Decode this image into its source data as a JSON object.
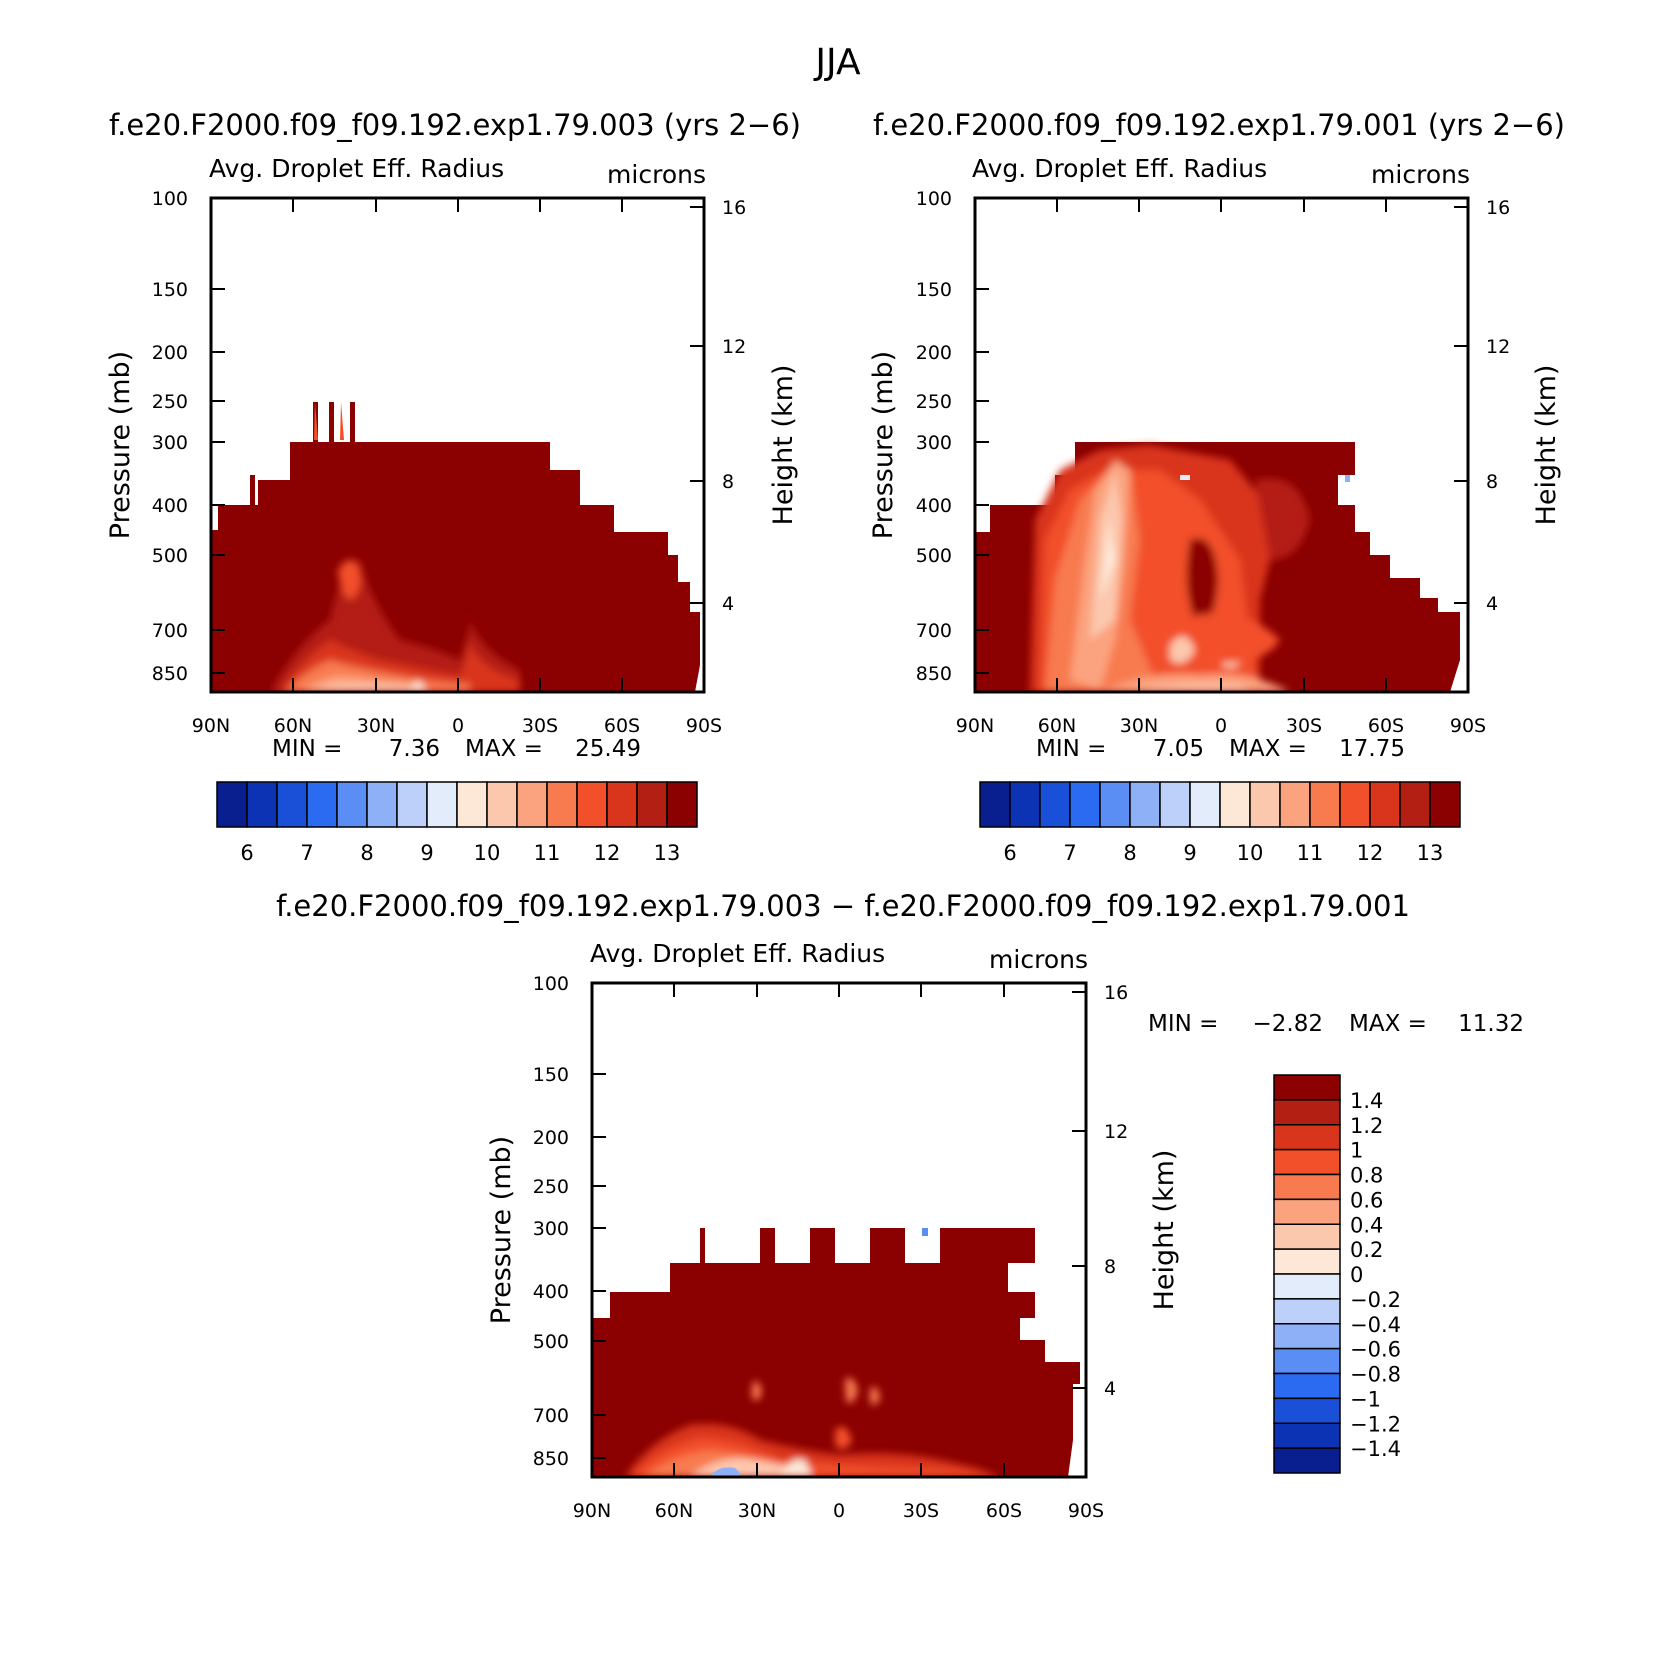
{
  "figure": {
    "title": "JJA",
    "diff_title": "f.e20.F2000.f09_f09.192.exp1.79.003 − f.e20.F2000.f09_f09.192.exp1.79.001"
  },
  "panels": [
    {
      "case_title": "f.e20.F2000.f09_f09.192.exp1.79.003 (yrs 2−6)",
      "left_title": "Avg. Droplet Eff. Radius",
      "right_title": "microns",
      "ylabel": "Pressure (mb)",
      "y2label": "Height (km)",
      "min_label": "MIN =",
      "min_value": "7.36",
      "max_label": "MAX =",
      "max_value": "25.49"
    },
    {
      "case_title": "f.e20.F2000.f09_f09.192.exp1.79.001 (yrs 2−6)",
      "left_title": "Avg. Droplet Eff. Radius",
      "right_title": "microns",
      "ylabel": "Pressure (mb)",
      "y2label": "Height (km)",
      "min_label": "MIN =",
      "min_value": "7.05",
      "max_label": "MAX =",
      "max_value": "17.75"
    },
    {
      "left_title": "Avg. Droplet Eff. Radius",
      "right_title": "microns",
      "ylabel": "Pressure (mb)",
      "y2label": "Height (km)",
      "min_label": "MIN =",
      "min_value": "−2.82",
      "max_label": "MAX =",
      "max_value": "11.32"
    }
  ],
  "chart_data": [
    {
      "type": "heatmap",
      "title": "f.e20.F2000.f09_f09.192.exp1.79.003 (yrs 2−6)",
      "variable": "Avg. Droplet Eff. Radius",
      "units": "microns",
      "x_ticks": [
        "90N",
        "60N",
        "30N",
        "0",
        "30S",
        "60S",
        "90S"
      ],
      "y_ticks": [
        100,
        150,
        200,
        250,
        300,
        400,
        500,
        700,
        850
      ],
      "y2_ticks": [
        16,
        12,
        8,
        4
      ],
      "min": 7.36,
      "max": 25.49,
      "colorbar_labels": [
        "6",
        "7",
        "8",
        "9",
        "10",
        "11",
        "12",
        "13"
      ],
      "colorbar_colors": [
        "#0a1f8f",
        "#0d33b5",
        "#1a4fd8",
        "#2a6bf2",
        "#5a8ef5",
        "#8eb0f7",
        "#bcd0fa",
        "#e3ecfb",
        "#fde8d8",
        "#fcc8ad",
        "#fba37e",
        "#f87a4f",
        "#f2502a",
        "#d9341c",
        "#b41f13",
        "#8b0000"
      ],
      "regions_approx": "cloud field mostly > 13 microns, lighter values (9-11) near surface 60N-0"
    },
    {
      "type": "heatmap",
      "title": "f.e20.F2000.f09_f09.192.exp1.79.001 (yrs 2−6)",
      "variable": "Avg. Droplet Eff. Radius",
      "units": "microns",
      "x_ticks": [
        "90N",
        "60N",
        "30N",
        "0",
        "30S",
        "60S",
        "90S"
      ],
      "y_ticks": [
        100,
        150,
        200,
        250,
        300,
        400,
        500,
        700,
        850
      ],
      "y2_ticks": [
        16,
        12,
        8,
        4
      ],
      "min": 7.05,
      "max": 17.75,
      "colorbar_labels": [
        "6",
        "7",
        "8",
        "9",
        "10",
        "11",
        "12",
        "13"
      ],
      "colorbar_colors": [
        "#0a1f8f",
        "#0d33b5",
        "#1a4fd8",
        "#2a6bf2",
        "#5a8ef5",
        "#8eb0f7",
        "#bcd0fa",
        "#e3ecfb",
        "#fde8d8",
        "#fcc8ad",
        "#fba37e",
        "#f87a4f",
        "#f2502a",
        "#d9341c",
        "#b41f13",
        "#8b0000"
      ]
    },
    {
      "type": "heatmap",
      "title": "f.e20.F2000.f09_f09.192.exp1.79.003 − f.e20.F2000.f09_f09.192.exp1.79.001",
      "variable": "Avg. Droplet Eff. Radius",
      "units": "microns",
      "x_ticks": [
        "90N",
        "60N",
        "30N",
        "0",
        "30S",
        "60S",
        "90S"
      ],
      "y_ticks": [
        100,
        150,
        200,
        250,
        300,
        400,
        500,
        700,
        850
      ],
      "y2_ticks": [
        16,
        12,
        8,
        4
      ],
      "min": -2.82,
      "max": 11.32,
      "colorbar_labels": [
        "1.4",
        "1.2",
        "1",
        "0.8",
        "0.6",
        "0.4",
        "0.2",
        "0",
        "−0.2",
        "−0.4",
        "−0.6",
        "−0.8",
        "−1",
        "−1.2",
        "−1.4"
      ],
      "colorbar_colors": [
        "#8b0000",
        "#b41f13",
        "#d9341c",
        "#f2502a",
        "#f87a4f",
        "#fba37e",
        "#fcc8ad",
        "#fde8d8",
        "#e3ecfb",
        "#bcd0fa",
        "#8eb0f7",
        "#5a8ef5",
        "#2a6bf2",
        "#1a4fd8",
        "#0d33b5",
        "#0a1f8f"
      ]
    }
  ]
}
